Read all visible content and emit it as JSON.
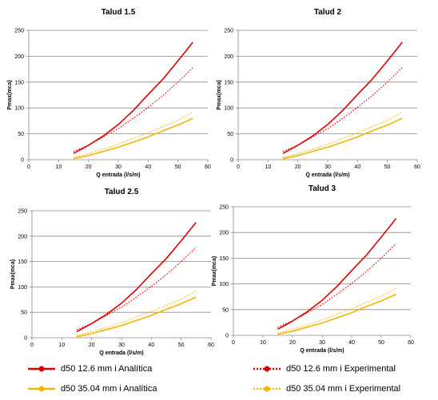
{
  "chart_data": [
    {
      "type": "line",
      "title": "Talud 1.5",
      "xlabel": "Q entrada (l/s/m)",
      "ylabel": "Pmax(mca)",
      "xlim": [
        0,
        60
      ],
      "ylim": [
        0,
        250
      ],
      "xticks": [
        "0",
        "10",
        "20",
        "30",
        "40",
        "50",
        "60"
      ],
      "yticks": [
        "0",
        "50",
        "100",
        "150",
        "200",
        "250"
      ],
      "grid": "horizontal",
      "series": [
        {
          "name": "d50 12.6 mm  i Analítica",
          "color": "#e00000",
          "style": "solid",
          "x": [
            15,
            20,
            25,
            30,
            35,
            40,
            45,
            50,
            55
          ],
          "y": [
            12,
            28,
            46,
            68,
            95,
            126,
            156,
            191,
            227
          ]
        },
        {
          "name": "d50 12.6 mm  i Experimental",
          "color": "#e00000",
          "style": "dotted",
          "x": [
            15,
            20,
            25,
            30,
            35,
            40,
            45,
            50,
            55
          ],
          "y": [
            16,
            28,
            44,
            60,
            80,
            101,
            124,
            150,
            178
          ]
        },
        {
          "name": "d50 35.04 mm  i Analítica",
          "color": "#f5b400",
          "style": "solid",
          "x": [
            15,
            20,
            25,
            30,
            35,
            40,
            45,
            50,
            55
          ],
          "y": [
            2,
            8,
            16,
            24,
            34,
            44,
            56,
            67,
            80
          ]
        },
        {
          "name": "d50 35.04 mm  i Experimental",
          "color": "#f5b400",
          "style": "dotted",
          "x": [
            15,
            20,
            25,
            30,
            35,
            40,
            45,
            50,
            55
          ],
          "y": [
            4,
            12,
            20,
            30,
            41,
            52,
            64,
            76,
            92
          ]
        }
      ]
    },
    {
      "type": "line",
      "title": "Talud 2",
      "xlabel": "Q entrada (l/s/m)",
      "ylabel": "Pmax(mca)",
      "xlim": [
        0,
        60
      ],
      "ylim": [
        0,
        250
      ],
      "xticks": [
        "0",
        "10",
        "20",
        "30",
        "40",
        "50",
        "60"
      ],
      "yticks": [
        "0",
        "50",
        "100",
        "150",
        "200",
        "250"
      ],
      "grid": "horizontal",
      "series": [
        {
          "name": "d50 12.6 mm  i Analítica",
          "color": "#e00000",
          "style": "solid",
          "x": [
            15,
            20,
            25,
            30,
            35,
            40,
            45,
            50,
            55
          ],
          "y": [
            12,
            28,
            46,
            68,
            95,
            126,
            156,
            191,
            227
          ]
        },
        {
          "name": "d50 12.6 mm  i Experimental",
          "color": "#e00000",
          "style": "dotted",
          "x": [
            15,
            20,
            25,
            30,
            35,
            40,
            45,
            50,
            55
          ],
          "y": [
            16,
            28,
            44,
            60,
            80,
            101,
            124,
            150,
            178
          ]
        },
        {
          "name": "d50 35.04 mm  i Analítica",
          "color": "#f5b400",
          "style": "solid",
          "x": [
            15,
            20,
            25,
            30,
            35,
            40,
            45,
            50,
            55
          ],
          "y": [
            2,
            8,
            16,
            24,
            34,
            44,
            56,
            67,
            80
          ]
        },
        {
          "name": "d50 35.04 mm  i Experimental",
          "color": "#f5b400",
          "style": "dotted",
          "x": [
            15,
            20,
            25,
            30,
            35,
            40,
            45,
            50,
            55
          ],
          "y": [
            4,
            12,
            20,
            30,
            41,
            52,
            64,
            76,
            92
          ]
        }
      ]
    },
    {
      "type": "line",
      "title": "Talud 2.5",
      "xlabel": "Q entrada (l/s/m)",
      "ylabel": "Pmax(mca)",
      "xlim": [
        0,
        60
      ],
      "ylim": [
        0,
        250
      ],
      "xticks": [
        "0",
        "10",
        "20",
        "30",
        "40",
        "50",
        "60"
      ],
      "yticks": [
        "0",
        "50",
        "100",
        "150",
        "200",
        "250"
      ],
      "grid": "horizontal",
      "series": [
        {
          "name": "d50 12.6 mm  i Analítica",
          "color": "#e00000",
          "style": "solid",
          "x": [
            15,
            20,
            25,
            30,
            35,
            40,
            45,
            50,
            55
          ],
          "y": [
            12,
            28,
            46,
            68,
            95,
            126,
            156,
            191,
            227
          ]
        },
        {
          "name": "d50 12.6 mm  i Experimental",
          "color": "#e00000",
          "style": "dotted",
          "x": [
            15,
            20,
            25,
            30,
            35,
            40,
            45,
            50,
            55
          ],
          "y": [
            16,
            28,
            44,
            60,
            80,
            101,
            124,
            150,
            178
          ]
        },
        {
          "name": "d50 35.04 mm  i Analítica",
          "color": "#f5b400",
          "style": "solid",
          "x": [
            15,
            20,
            25,
            30,
            35,
            40,
            45,
            50,
            55
          ],
          "y": [
            2,
            8,
            16,
            24,
            34,
            44,
            56,
            67,
            80
          ]
        },
        {
          "name": "d50 35.04 mm  i Experimental",
          "color": "#f5b400",
          "style": "dotted",
          "x": [
            15,
            20,
            25,
            30,
            35,
            40,
            45,
            50,
            55
          ],
          "y": [
            4,
            12,
            20,
            30,
            41,
            52,
            64,
            76,
            92
          ]
        }
      ]
    },
    {
      "type": "line",
      "title": "Talud 3",
      "xlabel": "Q entrada (l/s/m)",
      "ylabel": "Pmax(mca)",
      "xlim": [
        0,
        60
      ],
      "ylim": [
        0,
        250
      ],
      "xticks": [
        "0",
        "10",
        "20",
        "30",
        "40",
        "50",
        "60"
      ],
      "yticks": [
        "0",
        "50",
        "100",
        "150",
        "200",
        "250"
      ],
      "grid": "horizontal",
      "series": [
        {
          "name": "d50 12.6 mm  i Analítica",
          "color": "#e00000",
          "style": "solid",
          "x": [
            15,
            20,
            25,
            30,
            35,
            40,
            45,
            50,
            55
          ],
          "y": [
            12,
            28,
            46,
            68,
            95,
            126,
            156,
            191,
            227
          ]
        },
        {
          "name": "d50 12.6 mm  i Experimental",
          "color": "#e00000",
          "style": "dotted",
          "x": [
            15,
            20,
            25,
            30,
            35,
            40,
            45,
            50,
            55
          ],
          "y": [
            16,
            28,
            44,
            60,
            80,
            101,
            124,
            150,
            178
          ]
        },
        {
          "name": "d50 35.04 mm  i Analítica",
          "color": "#f5b400",
          "style": "solid",
          "x": [
            15,
            20,
            25,
            30,
            35,
            40,
            45,
            50,
            55
          ],
          "y": [
            2,
            8,
            16,
            24,
            34,
            44,
            56,
            67,
            80
          ]
        },
        {
          "name": "d50 35.04 mm  i Experimental",
          "color": "#f5b400",
          "style": "dotted",
          "x": [
            15,
            20,
            25,
            30,
            35,
            40,
            45,
            50,
            55
          ],
          "y": [
            4,
            12,
            20,
            30,
            41,
            52,
            64,
            76,
            92
          ]
        }
      ]
    }
  ],
  "legend": [
    {
      "label": "d50 12.6 mm  i Analítica",
      "color": "#e00000",
      "style": "solid"
    },
    {
      "label": "d50 12.6 mm  i Experimental",
      "color": "#e00000",
      "style": "dotted"
    },
    {
      "label": "d50 35.04 mm  i Analítica",
      "color": "#f5b400",
      "style": "solid"
    },
    {
      "label": "d50 35.04 mm  i Experimental",
      "color": "#f5b400",
      "style": "dotted"
    }
  ]
}
